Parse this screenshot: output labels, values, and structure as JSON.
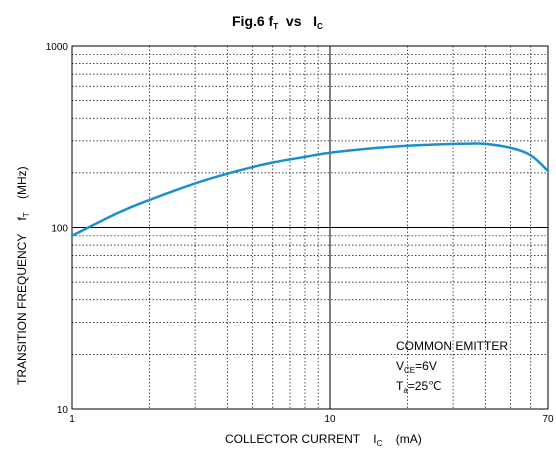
{
  "chart_data": {
    "type": "line",
    "title": "Fig.6  f",
    "title_sub1": "T",
    "title_mid": "  vs   I",
    "title_sub2": "C",
    "xlabel": "COLLECTOR CURRENT    I",
    "xlabel_sub": "C",
    "xlabel_unit": "    (mA)",
    "ylabel": "TRANSITION FREQUENCY    f",
    "ylabel_sub": "T",
    "ylabel_unit": "    (MHz)",
    "xscale": "log",
    "yscale": "log",
    "xlim": [
      1,
      70
    ],
    "ylim": [
      10,
      1000
    ],
    "x_ticks": [
      "1",
      "10",
      "70"
    ],
    "y_ticks": [
      "10",
      "100",
      "1000"
    ],
    "grid": true,
    "line_color": "#1a8fd0",
    "annotation": {
      "line1": "COMMON EMITTER",
      "line2_main": "V",
      "line2_sub": "CE",
      "line2_rest": "=6V",
      "line3_main": "T",
      "line3_sub": "a",
      "line3_rest": "=25℃"
    },
    "series": [
      {
        "x": [
          1,
          1.5,
          2,
          3,
          4,
          5,
          6,
          8,
          10,
          15,
          20,
          25,
          30,
          35,
          40,
          50,
          60,
          70
        ],
        "y": [
          90,
          120,
          142,
          175,
          198,
          215,
          228,
          245,
          258,
          274,
          282,
          286,
          289,
          290,
          289,
          275,
          250,
          205
        ]
      }
    ]
  }
}
